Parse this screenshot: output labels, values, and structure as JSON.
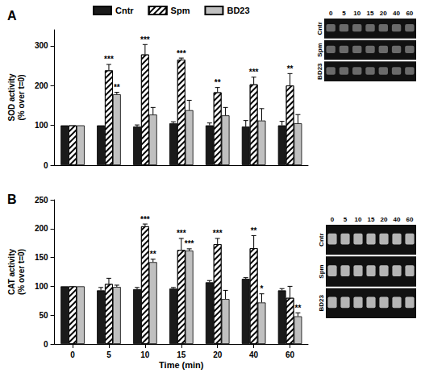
{
  "chart_data": [
    {
      "type": "bar",
      "title": "A",
      "y_label": "SOD activity\n(% over t=0)",
      "categories": [
        "0",
        "5",
        "10",
        "15",
        "20",
        "40",
        "60"
      ],
      "ylim": [
        0,
        340
      ],
      "yticks": [
        0,
        100,
        200,
        300
      ],
      "grid": false,
      "legend": "top",
      "tick_labels": "y",
      "series": [
        {
          "name": "Cntr",
          "color": "#1a1a1a",
          "values": [
            100,
            100,
            97,
            105,
            100,
            97,
            100
          ],
          "errors": [
            0,
            0,
            4,
            4,
            6,
            15,
            10
          ],
          "significance": [
            null,
            null,
            null,
            null,
            null,
            null,
            null
          ]
        },
        {
          "name": "Spm",
          "color": "#ffffff",
          "values": [
            100,
            238,
            278,
            265,
            183,
            203,
            200
          ],
          "errors": [
            0,
            15,
            25,
            4,
            12,
            18,
            30
          ],
          "significance": [
            null,
            "***",
            "***",
            "***",
            "**",
            "***",
            "**"
          ]
        },
        {
          "name": "BD23",
          "color": "#c0c0c0",
          "values": [
            100,
            178,
            127,
            138,
            125,
            112,
            105
          ],
          "errors": [
            0,
            5,
            18,
            25,
            20,
            30,
            22
          ],
          "significance": [
            null,
            "**",
            null,
            null,
            null,
            null,
            null
          ]
        }
      ],
      "gel": {
        "lanes": [
          "0",
          "5",
          "10",
          "15",
          "20",
          "40",
          "60"
        ],
        "rows": [
          "Cntr",
          "Spm",
          "BD23"
        ]
      }
    },
    {
      "type": "bar",
      "title": "B",
      "y_label": "CAT activity\n(% over t=0)",
      "x_label": "Time (min)",
      "categories": [
        "0",
        "5",
        "10",
        "15",
        "20",
        "40",
        "60"
      ],
      "ylim": [
        0,
        250
      ],
      "yticks": [
        0,
        50,
        100,
        150,
        200,
        250
      ],
      "grid": false,
      "tick_labels": true,
      "series": [
        {
          "name": "Cntr",
          "color": "#1a1a1a",
          "values": [
            100,
            93,
            95,
            96,
            107,
            113,
            93
          ],
          "errors": [
            0,
            5,
            3,
            2,
            3,
            2,
            3
          ],
          "significance": [
            null,
            null,
            null,
            null,
            null,
            null,
            null
          ]
        },
        {
          "name": "Spm",
          "color": "#ffffff",
          "values": [
            100,
            104,
            204,
            163,
            173,
            166,
            80
          ],
          "errors": [
            0,
            10,
            4,
            20,
            10,
            22,
            20
          ],
          "significance": [
            null,
            null,
            "***",
            "***",
            "***",
            "**",
            null
          ]
        },
        {
          "name": "BD23",
          "color": "#c0c0c0",
          "values": [
            100,
            99,
            142,
            162,
            78,
            72,
            48
          ],
          "errors": [
            0,
            3,
            5,
            3,
            15,
            15,
            6
          ],
          "significance": [
            null,
            null,
            "**",
            "***",
            null,
            "*",
            "**"
          ]
        }
      ],
      "gel": {
        "lanes": [
          "0",
          "5",
          "10",
          "15",
          "20",
          "40",
          "60"
        ],
        "rows": [
          "Cntr",
          "Spm",
          "BD23"
        ]
      }
    }
  ]
}
